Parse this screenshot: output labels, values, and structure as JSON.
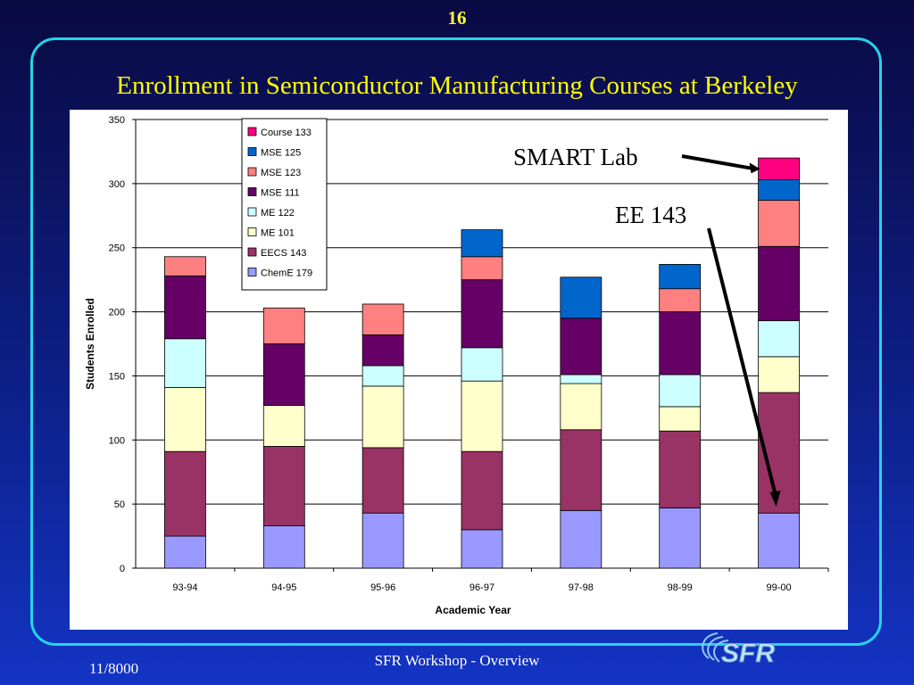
{
  "slide": {
    "page_number": "16",
    "title": "Enrollment in Semiconductor Manufacturing Courses at Berkeley",
    "footer_center": "SFR Workshop - Overview",
    "footer_left": "11/8000",
    "logo_text": "SFR"
  },
  "colors": {
    "title": "#ffff00",
    "frame": "#26d3e8",
    "background_top": "#0a0a42",
    "background_bottom": "#1334c4"
  },
  "chart_data": {
    "type": "bar",
    "stacked": true,
    "categories": [
      "93-94",
      "94-95",
      "95-96",
      "96-97",
      "97-98",
      "98-99",
      "99-00"
    ],
    "xlabel": "Academic Year",
    "ylabel": "Students Enrolled",
    "ylim": [
      0,
      350
    ],
    "yticks": [
      0,
      50,
      100,
      150,
      200,
      250,
      300,
      350
    ],
    "grid": true,
    "legend_position": "top-left",
    "series": [
      {
        "name": "ChemE 179",
        "color": "#9999ff",
        "values": [
          25,
          33,
          43,
          30,
          45,
          47,
          43
        ]
      },
      {
        "name": "EECS 143",
        "color": "#993366",
        "values": [
          66,
          62,
          51,
          61,
          63,
          60,
          94
        ]
      },
      {
        "name": "ME 101",
        "color": "#ffffcc",
        "values": [
          50,
          32,
          48,
          55,
          36,
          19,
          28
        ]
      },
      {
        "name": "ME 122",
        "color": "#ccffff",
        "values": [
          38,
          0,
          16,
          26,
          7,
          25,
          28
        ]
      },
      {
        "name": "MSE 111",
        "color": "#660066",
        "values": [
          49,
          48,
          24,
          53,
          44,
          49,
          58
        ]
      },
      {
        "name": "MSE 123",
        "color": "#ff8080",
        "values": [
          15,
          28,
          24,
          18,
          0,
          18,
          36
        ]
      },
      {
        "name": "MSE 125",
        "color": "#0066cc",
        "values": [
          0,
          0,
          0,
          21,
          32,
          19,
          16
        ]
      },
      {
        "name": "Course 133",
        "color": "#ff0080",
        "values": [
          0,
          0,
          0,
          0,
          0,
          0,
          17
        ]
      }
    ],
    "annotations": [
      {
        "text": "SMART Lab",
        "points_to": "Course 133, 99-00"
      },
      {
        "text": "EE 143",
        "points_to": "EECS 143, 99-00"
      }
    ]
  }
}
